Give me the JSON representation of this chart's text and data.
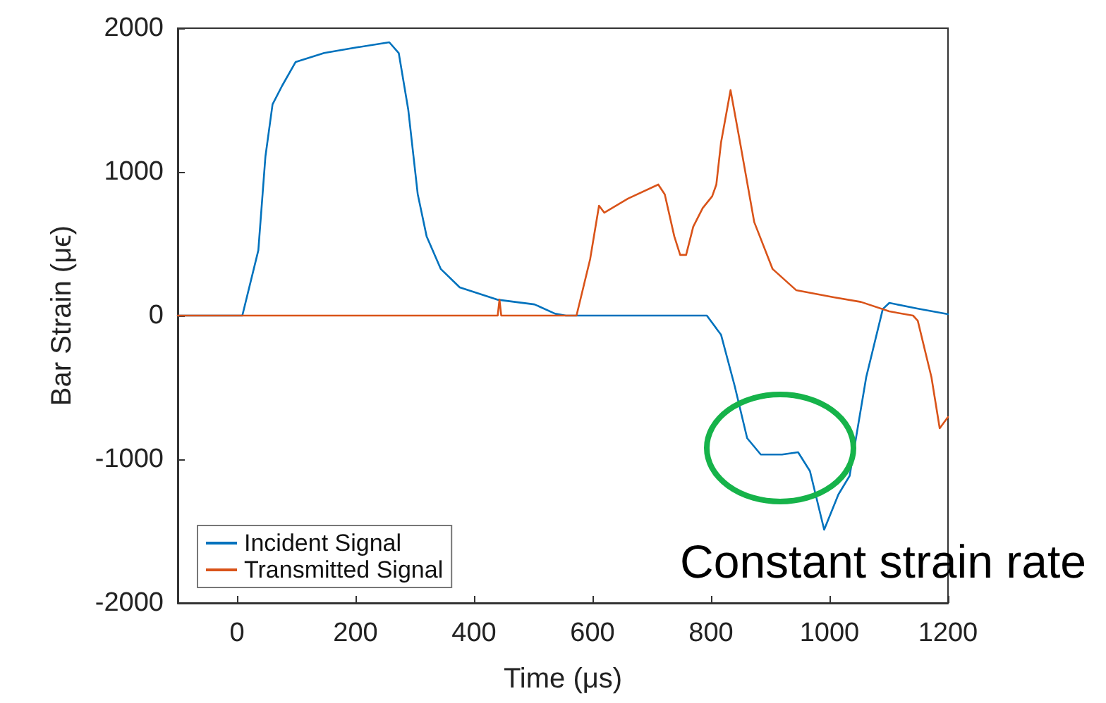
{
  "chart_data": {
    "type": "line",
    "xlabel": "Time (μs)",
    "ylabel": "Bar Strain (μϵ)",
    "xlim": [
      -100,
      1200
    ],
    "xticks": [
      0,
      200,
      400,
      600,
      800,
      1000,
      1200
    ],
    "ylim": [
      -2000,
      2000
    ],
    "yticks": [
      -2000,
      -1000,
      0,
      1000,
      2000
    ],
    "grid": false,
    "legend": "bottom left",
    "marker": "none",
    "line_style": "solid",
    "annotations": [
      "Constant strain rate"
    ],
    "series": [
      {
        "name": "Incident Signal",
        "color": "#0072bd",
        "x": [
          -100,
          9,
          36,
          48,
          60,
          76,
          99,
          147,
          202,
          257,
          273,
          289,
          305,
          320,
          344,
          376,
          439,
          502,
          537,
          555,
          700,
          793,
          817,
          840,
          861,
          884,
          920,
          947,
          967,
          991,
          1015,
          1034,
          1062,
          1090,
          1101,
          1148,
          1200
        ],
        "values": [
          0,
          0,
          454,
          1108,
          1470,
          1598,
          1765,
          1827,
          1866,
          1902,
          1827,
          1434,
          846,
          552,
          324,
          196,
          111,
          78,
          13,
          0,
          0,
          0,
          -134,
          -490,
          -853,
          -967,
          -967,
          -951,
          -1082,
          -1490,
          -1245,
          -1115,
          -428,
          46,
          88,
          49,
          10
        ]
      },
      {
        "name": "Transmitted Signal",
        "color": "#d95319",
        "x": [
          -100,
          440,
          443,
          446,
          560,
          573,
          596,
          611,
          620,
          660,
          711,
          722,
          738,
          748,
          758,
          770,
          786,
          802,
          809,
          817,
          833,
          849,
          873,
          904,
          944,
          1007,
          1053,
          1101,
          1141,
          1149,
          1172,
          1186,
          1200
        ],
        "values": [
          0,
          0,
          111,
          0,
          0,
          0,
          392,
          765,
          716,
          814,
          912,
          843,
          552,
          422,
          422,
          618,
          748,
          830,
          912,
          1206,
          1569,
          1206,
          650,
          324,
          176,
          127,
          95,
          29,
          0,
          -36,
          -428,
          -784,
          -706
        ]
      }
    ]
  }
}
